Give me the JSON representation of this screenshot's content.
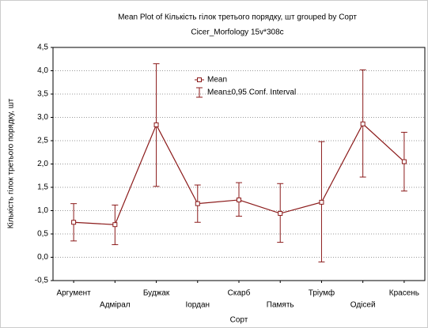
{
  "chart_data": {
    "type": "mean_plot",
    "title": "Mean Plot of Кількість гілок третього порядку, шт grouped by  Сорт",
    "subtitle": "Cicer_Morfology 15v*308c",
    "x_label": "Сорт",
    "y_label": "Кількість гілок третього порядку, шт",
    "categories": [
      "Аргумент",
      "Адмірал",
      "Буджак",
      "Іордан",
      "Скарб",
      "Память",
      "Тріумф",
      "Одісей",
      "Красень"
    ],
    "series": [
      {
        "name": "Mean",
        "ci_name": "Mean±0,95 Conf. Interval",
        "color": "#8b1a1a",
        "values": [
          0.75,
          0.7,
          2.84,
          1.15,
          1.23,
          0.94,
          1.18,
          2.86,
          2.05
        ],
        "ci_lower": [
          0.35,
          0.27,
          1.52,
          0.75,
          0.88,
          0.32,
          -0.1,
          1.72,
          1.42
        ],
        "ci_upper": [
          1.15,
          1.12,
          4.15,
          1.55,
          1.6,
          1.58,
          2.48,
          4.02,
          2.68
        ]
      }
    ],
    "ylim": [
      -0.5,
      4.5
    ],
    "yticks": [
      {
        "value": -0.5,
        "label": "-0,5"
      },
      {
        "value": 0,
        "label": "0,0"
      },
      {
        "value": 0.5,
        "label": "0,5"
      },
      {
        "value": 1,
        "label": "1,0"
      },
      {
        "value": 1.5,
        "label": "1,5"
      },
      {
        "value": 2,
        "label": "2,0"
      },
      {
        "value": 2.5,
        "label": "2,5"
      },
      {
        "value": 3,
        "label": "3,0"
      },
      {
        "value": 3.5,
        "label": "3,5"
      },
      {
        "value": 4,
        "label": "4,0"
      },
      {
        "value": 4.5,
        "label": "4,5"
      }
    ],
    "grid": true
  }
}
